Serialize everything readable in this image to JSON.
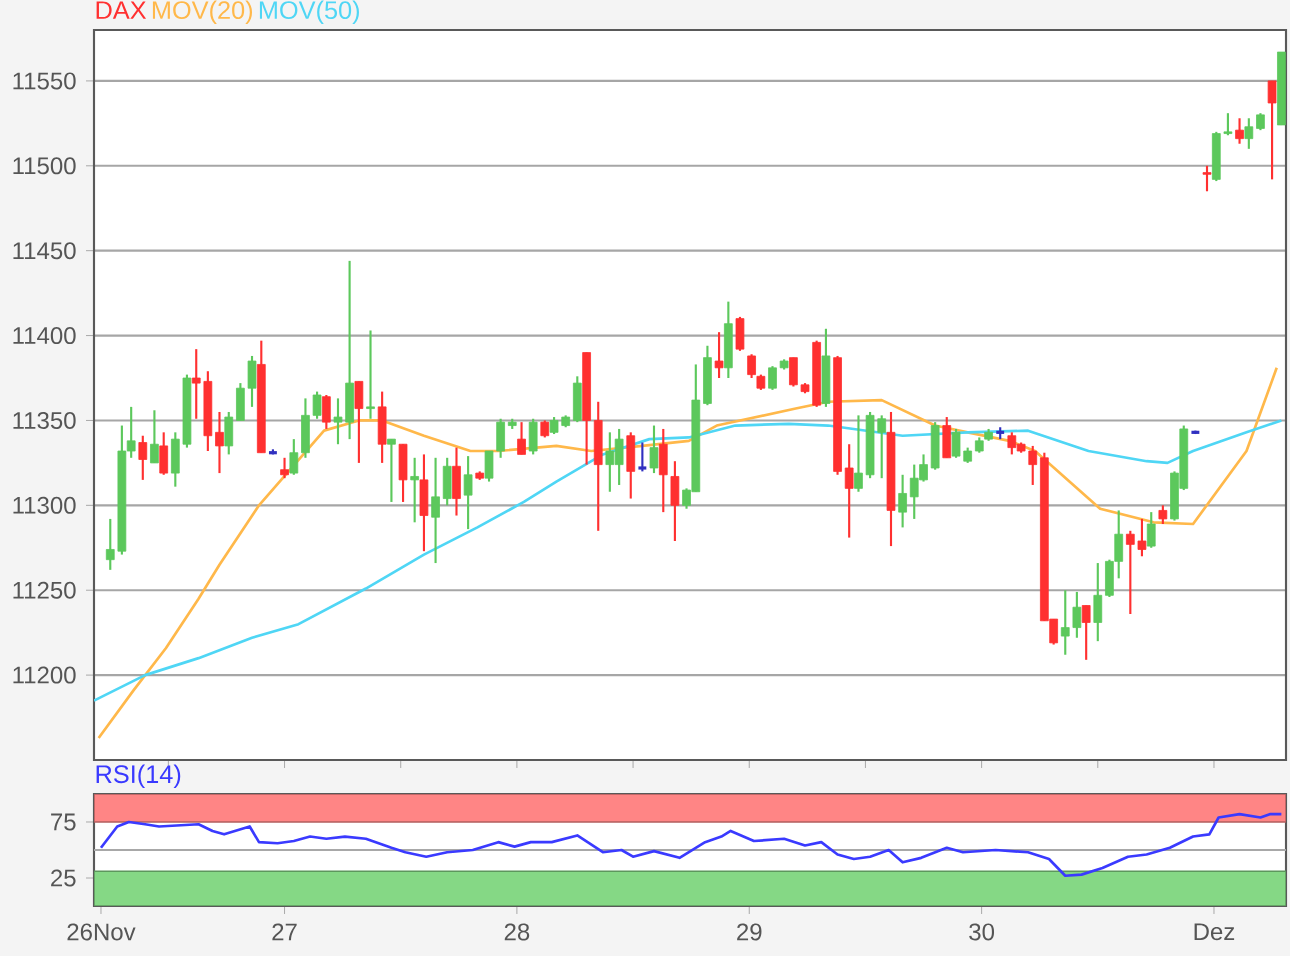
{
  "chart_data": [
    {
      "type": "candlestick",
      "x": [
        26.25,
        26.3,
        26.34,
        26.39,
        26.44,
        26.48,
        26.53,
        26.58,
        26.62,
        26.67,
        26.72,
        26.76,
        26.81,
        26.86,
        26.9,
        26.95,
        27.0,
        27.04,
        27.09,
        27.14,
        27.18,
        27.23,
        27.28,
        27.32,
        27.37,
        27.42,
        27.46,
        27.51,
        27.56,
        27.6,
        27.65,
        27.7,
        27.74,
        27.79,
        27.84,
        27.88,
        27.93,
        27.98,
        28.02,
        28.07,
        28.12,
        28.16,
        28.21,
        28.26,
        28.3,
        28.35,
        28.4,
        28.44,
        28.49,
        28.54,
        28.59,
        28.63,
        28.68,
        28.73,
        28.77,
        28.82,
        28.87,
        28.91,
        28.96,
        29.01,
        29.05,
        29.1,
        29.15,
        29.19,
        29.24,
        29.29,
        29.33,
        29.38,
        29.43,
        29.47,
        29.52,
        29.57,
        29.61,
        29.66,
        29.71,
        29.75,
        29.8,
        29.85,
        29.89,
        29.94,
        29.99,
        30.03,
        30.08,
        30.13,
        30.17,
        30.22,
        30.27,
        30.31,
        30.36,
        30.41,
        30.45,
        30.5,
        30.55,
        30.59,
        30.64,
        30.69,
        30.73,
        30.78,
        30.83,
        30.87,
        30.92,
        30.97,
        31.01,
        31.06,
        31.11,
        31.15,
        31.2,
        31.25,
        31.29
      ],
      "series": [
        {
          "name": "DAX",
          "type": "candlestick",
          "color": "#ff3030",
          "ohlc": [
            [
              11268,
              11292,
              11262,
              11274
            ],
            [
              11273,
              11347,
              11271,
              11332
            ],
            [
              11332,
              11358,
              11328,
              11338
            ],
            [
              11337,
              11341,
              11315,
              11327
            ],
            [
              11325,
              11356,
              11325,
              11336
            ],
            [
              11335,
              11343,
              11318,
              11319
            ],
            [
              11319,
              11343,
              11311,
              11339
            ],
            [
              11336,
              11377,
              11334,
              11375
            ],
            [
              11375,
              11392,
              11351,
              11372
            ],
            [
              11373,
              11379,
              11332,
              11341
            ],
            [
              11343,
              11355,
              11319,
              11335
            ],
            [
              11335,
              11355,
              11330,
              11352
            ],
            [
              11350,
              11372,
              11350,
              11369
            ],
            [
              11369,
              11388,
              11358,
              11385
            ],
            [
              11383,
              11397,
              11331,
              11331
            ],
            [
              11331,
              11333,
              11330,
              11331
            ],
            [
              11321,
              11328,
              11316,
              11318
            ],
            [
              11319,
              11339,
              11318,
              11331
            ],
            [
              11331,
              11363,
              11328,
              11353
            ],
            [
              11353,
              11367,
              11351,
              11365
            ],
            [
              11364,
              11365,
              11345,
              11349
            ],
            [
              11349,
              11363,
              11336,
              11352
            ],
            [
              11349,
              11444,
              11339,
              11372
            ],
            [
              11373,
              11373,
              11325,
              11357
            ],
            [
              11357,
              11403,
              11351,
              11358
            ],
            [
              11358,
              11367,
              11325,
              11336
            ],
            [
              11336,
              11339,
              11302,
              11339
            ],
            [
              11336,
              11336,
              11302,
              11315
            ],
            [
              11315,
              11328,
              11290,
              11317
            ],
            [
              11315,
              11330,
              11273,
              11294
            ],
            [
              11293,
              11328,
              11266,
              11305
            ],
            [
              11304,
              11328,
              11300,
              11323
            ],
            [
              11323,
              11334,
              11294,
              11304
            ],
            [
              11306,
              11329,
              11286,
              11318
            ],
            [
              11319,
              11320,
              11315,
              11316
            ],
            [
              11316,
              11332,
              11314,
              11332
            ],
            [
              11332,
              11351,
              11328,
              11349
            ],
            [
              11347,
              11351,
              11345,
              11349
            ],
            [
              11339,
              11349,
              11330,
              11330
            ],
            [
              11332,
              11351,
              11330,
              11349
            ],
            [
              11349,
              11350,
              11340,
              11341
            ],
            [
              11343,
              11352,
              11342,
              11350
            ],
            [
              11347,
              11353,
              11346,
              11352
            ],
            [
              11350,
              11376,
              11349,
              11372
            ],
            [
              11390,
              11390,
              11324,
              11350
            ],
            [
              11350,
              11361,
              11285,
              11324
            ],
            [
              11324,
              11343,
              11308,
              11332
            ],
            [
              11324,
              11345,
              11312,
              11339
            ],
            [
              11341,
              11343,
              11304,
              11320
            ],
            [
              11322,
              11337,
              11320,
              11322
            ],
            [
              11322,
              11347,
              11319,
              11334
            ],
            [
              11336,
              11345,
              11296,
              11318
            ],
            [
              11317,
              11326,
              11279,
              11300
            ],
            [
              11300,
              11310,
              11298,
              11309
            ],
            [
              11308,
              11383,
              11308,
              11362
            ],
            [
              11360,
              11394,
              11359,
              11387
            ],
            [
              11385,
              11402,
              11375,
              11381
            ],
            [
              11381,
              11420,
              11375,
              11407
            ],
            [
              11410,
              11411,
              11391,
              11392
            ],
            [
              11388,
              11389,
              11375,
              11377
            ],
            [
              11376,
              11377,
              11368,
              11369
            ],
            [
              11369,
              11382,
              11368,
              11381
            ],
            [
              11381,
              11386,
              11380,
              11385
            ],
            [
              11387,
              11387,
              11370,
              11371
            ],
            [
              11371,
              11372,
              11366,
              11367
            ],
            [
              11396,
              11397,
              11358,
              11359
            ],
            [
              11360,
              11404,
              11358,
              11388
            ],
            [
              11387,
              11388,
              11318,
              11320
            ],
            [
              11322,
              11336,
              11281,
              11310
            ],
            [
              11310,
              11353,
              11308,
              11319
            ],
            [
              11318,
              11355,
              11316,
              11353
            ],
            [
              11343,
              11353,
              11316,
              11351
            ],
            [
              11343,
              11355,
              11276,
              11297
            ],
            [
              11296,
              11318,
              11287,
              11307
            ],
            [
              11305,
              11324,
              11292,
              11316
            ],
            [
              11315,
              11330,
              11314,
              11324
            ],
            [
              11322,
              11349,
              11321,
              11347
            ],
            [
              11347,
              11352,
              11328,
              11328
            ],
            [
              11329,
              11345,
              11328,
              11343
            ],
            [
              11326,
              11334,
              11325,
              11332
            ],
            [
              11332,
              11340,
              11331,
              11338
            ],
            [
              11339,
              11345,
              11338,
              11343
            ],
            [
              11343,
              11346,
              11339,
              11343
            ],
            [
              11341,
              11343,
              11330,
              11334
            ],
            [
              11336,
              11337,
              11331,
              11332
            ],
            [
              11332,
              11335,
              11312,
              11324
            ],
            [
              11328,
              11331,
              11232,
              11232
            ],
            [
              11233,
              11233,
              11218,
              11219
            ],
            [
              11223,
              11250,
              11212,
              11228
            ],
            [
              11228,
              11249,
              11222,
              11240
            ],
            [
              11241,
              11241,
              11209,
              11231
            ],
            [
              11231,
              11266,
              11220,
              11247
            ],
            [
              11247,
              11268,
              11246,
              11267
            ],
            [
              11267,
              11297,
              11257,
              11283
            ],
            [
              11283,
              11285,
              11236,
              11277
            ],
            [
              11279,
              11292,
              11270,
              11274
            ],
            [
              11276,
              11296,
              11275,
              11289
            ],
            [
              11297,
              11300,
              11289,
              11292
            ],
            [
              11292,
              11320,
              11291,
              11319
            ],
            [
              11310,
              11347,
              11309,
              11345
            ],
            [
              11343,
              11344,
              11342,
              11343
            ],
            [
              11496,
              11500,
              11485,
              11495
            ],
            [
              11492,
              11520,
              11491,
              11519
            ],
            [
              11519,
              11531,
              11518,
              11520
            ],
            [
              11521,
              11528,
              11513,
              11516
            ],
            [
              11516,
              11528,
              11510,
              11523
            ],
            [
              11522,
              11531,
              11521,
              11530
            ],
            [
              11550,
              11550,
              11492,
              11537
            ],
            [
              11524,
              11567,
              11524,
              11567
            ]
          ],
          "colors": [
            "#5cc85c",
            "#5cc85c",
            "#5cc85c",
            "#ff3030",
            "#5cc85c",
            "#ff3030",
            "#5cc85c",
            "#5cc85c",
            "#ff3030",
            "#ff3030",
            "#ff3030",
            "#5cc85c",
            "#5cc85c",
            "#5cc85c",
            "#ff3030",
            "#3030c0",
            "#ff3030",
            "#5cc85c",
            "#5cc85c",
            "#5cc85c",
            "#ff3030",
            "#5cc85c",
            "#5cc85c",
            "#ff3030",
            "#5cc85c",
            "#ff3030",
            "#5cc85c",
            "#ff3030",
            "#5cc85c",
            "#ff3030",
            "#5cc85c",
            "#5cc85c",
            "#ff3030",
            "#5cc85c",
            "#ff3030",
            "#5cc85c",
            "#5cc85c",
            "#5cc85c",
            "#ff3030",
            "#5cc85c",
            "#ff3030",
            "#5cc85c",
            "#5cc85c",
            "#5cc85c",
            "#ff3030",
            "#ff3030",
            "#5cc85c",
            "#5cc85c",
            "#ff3030",
            "#3030c0",
            "#5cc85c",
            "#ff3030",
            "#ff3030",
            "#5cc85c",
            "#5cc85c",
            "#5cc85c",
            "#ff3030",
            "#5cc85c",
            "#ff3030",
            "#ff3030",
            "#ff3030",
            "#5cc85c",
            "#5cc85c",
            "#ff3030",
            "#ff3030",
            "#ff3030",
            "#5cc85c",
            "#ff3030",
            "#ff3030",
            "#5cc85c",
            "#5cc85c",
            "#5cc85c",
            "#ff3030",
            "#5cc85c",
            "#5cc85c",
            "#5cc85c",
            "#5cc85c",
            "#ff3030",
            "#5cc85c",
            "#5cc85c",
            "#5cc85c",
            "#5cc85c",
            "#3030c0",
            "#ff3030",
            "#ff3030",
            "#ff3030",
            "#ff3030",
            "#ff3030",
            "#5cc85c",
            "#5cc85c",
            "#ff3030",
            "#5cc85c",
            "#5cc85c",
            "#5cc85c",
            "#ff3030",
            "#ff3030",
            "#5cc85c",
            "#ff3030",
            "#5cc85c",
            "#5cc85c",
            "#3030c0",
            "#ff3030",
            "#5cc85c",
            "#5cc85c",
            "#ff3030",
            "#5cc85c",
            "#5cc85c",
            "#ff3030",
            "#5cc85c"
          ]
        },
        {
          "name": "MOV(20)",
          "type": "line",
          "color": "#ffb84a",
          "x": [
            26.2,
            26.35,
            26.49,
            26.63,
            26.72,
            26.89,
            27.03,
            27.17,
            27.32,
            27.42,
            27.6,
            27.8,
            27.92,
            28.17,
            28.32,
            28.54,
            28.74,
            28.86,
            29.03,
            29.2,
            29.34,
            29.57,
            29.8,
            29.94,
            30.12,
            30.23,
            30.51,
            30.74,
            30.91,
            31.14,
            31.27
          ],
          "values": [
            11163,
            11191,
            11216,
            11245,
            11265,
            11300,
            11322,
            11344,
            11350,
            11350,
            11341,
            11332,
            11332,
            11335,
            11332,
            11335,
            11338,
            11347,
            11352,
            11357,
            11361,
            11362,
            11347,
            11343,
            11338,
            11332,
            11298,
            11290,
            11289,
            11332,
            11381
          ]
        },
        {
          "name": "MOV(50)",
          "type": "line",
          "color": "#4fd6f5",
          "x": [
            26.18,
            26.4,
            26.63,
            26.86,
            27.06,
            27.35,
            27.6,
            27.83,
            28.03,
            28.17,
            28.37,
            28.57,
            28.74,
            28.94,
            29.17,
            29.34,
            29.66,
            29.94,
            30.2,
            30.46,
            30.71,
            30.8,
            30.91,
            31.14,
            31.29
          ],
          "values": [
            11185,
            11200,
            11210,
            11222,
            11230,
            11251,
            11271,
            11287,
            11302,
            11314,
            11330,
            11339,
            11340,
            11347,
            11348,
            11347,
            11341,
            11343,
            11344,
            11332,
            11326,
            11325,
            11332,
            11343,
            11350
          ]
        }
      ],
      "xlim": [
        26.18,
        31.31
      ],
      "ylim": [
        11150,
        11580
      ],
      "yticks": [
        11200,
        11250,
        11300,
        11350,
        11400,
        11450,
        11500,
        11550
      ],
      "grid": "y",
      "tick_labels": "y"
    },
    {
      "type": "line",
      "series": [
        {
          "name": "RSI(14)",
          "color": "#3a3aff",
          "x": [
            26.21,
            26.28,
            26.33,
            26.4,
            26.46,
            26.63,
            26.69,
            26.74,
            26.85,
            26.89,
            26.97,
            27.04,
            27.11,
            27.18,
            27.26,
            27.35,
            27.46,
            27.52,
            27.61,
            27.7,
            27.81,
            27.92,
            27.99,
            28.06,
            28.15,
            28.26,
            28.37,
            28.45,
            28.5,
            28.59,
            28.7,
            28.81,
            28.88,
            28.92,
            29.02,
            29.15,
            29.24,
            29.31,
            29.38,
            29.45,
            29.52,
            29.6,
            29.66,
            29.74,
            29.85,
            29.92,
            30.06,
            30.2,
            30.29,
            30.36,
            30.43,
            30.52,
            30.63,
            30.71,
            30.81,
            30.91,
            30.98,
            31.02,
            31.11,
            31.2,
            31.24,
            31.29
          ],
          "values": [
            52,
            71,
            75,
            73,
            71,
            73,
            67,
            64,
            71,
            57,
            56,
            58,
            62,
            60,
            62,
            60,
            52,
            48,
            44,
            48,
            50,
            57,
            53,
            57,
            57,
            63,
            48,
            50,
            44,
            49,
            43,
            57,
            62,
            67,
            58,
            60,
            54,
            57,
            46,
            42,
            44,
            50,
            39,
            43,
            52,
            48,
            50,
            48,
            42,
            27,
            28,
            34,
            44,
            46,
            52,
            62,
            64,
            79,
            82,
            79,
            82,
            82
          ]
        }
      ],
      "xlim": [
        26.18,
        31.31
      ],
      "ylim": [
        0,
        100
      ],
      "xticks": [
        {
          "value": 26.21,
          "label": "26Nov"
        },
        27,
        28,
        29,
        30,
        {
          "value": 31,
          "label": "Dez"
        }
      ],
      "yticks": [
        25,
        75
      ],
      "bands": [
        {
          "axis": "y",
          "from": 75,
          "to": 100,
          "color": "#ff8585"
        },
        {
          "axis": "y",
          "from": 0,
          "to": 31,
          "color": "#85d885"
        }
      ],
      "ref_lines": [
        {
          "axis": "y",
          "value": 50,
          "color": "#a8a8a8"
        }
      ]
    }
  ]
}
